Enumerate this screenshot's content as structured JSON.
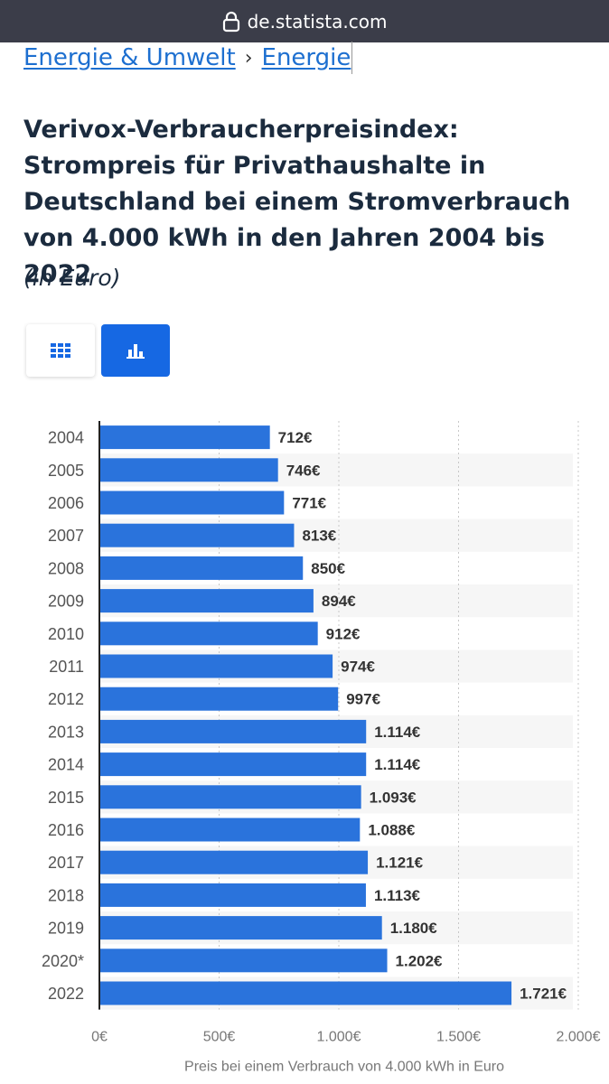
{
  "browser": {
    "url": "de.statista.com"
  },
  "breadcrumb": {
    "items": [
      "Energie & Umwelt",
      "Energie"
    ],
    "separator": "›"
  },
  "heading": {
    "title": "Verivox-Verbraucherpreisindex: Strompreis für Privathaushalte in Deutschland bei einem Stromverbrauch von 4.000 kWh in den Jahren 2004 bis 2022",
    "unit": "(in Euro)"
  },
  "view_toggle": {
    "table_icon": "table-grid-icon",
    "chart_icon": "bar-chart-icon",
    "active": "chart"
  },
  "colors": {
    "bar": "#2a73dc",
    "accent": "#1668e3",
    "link": "#1d6fd0",
    "topbar": "#3b3d49"
  },
  "chart_data": {
    "type": "bar",
    "orientation": "horizontal",
    "categories": [
      "2004",
      "2005",
      "2006",
      "2007",
      "2008",
      "2009",
      "2010",
      "2011",
      "2012",
      "2013",
      "2014",
      "2015",
      "2016",
      "2017",
      "2018",
      "2019",
      "2020*",
      "2022"
    ],
    "values": [
      712,
      746,
      771,
      813,
      850,
      894,
      912,
      974,
      997,
      1114,
      1114,
      1093,
      1088,
      1121,
      1113,
      1180,
      1202,
      1721
    ],
    "value_labels": [
      "712€",
      "746€",
      "771€",
      "813€",
      "850€",
      "894€",
      "912€",
      "974€",
      "997€",
      "1.114€",
      "1.114€",
      "1.093€",
      "1.088€",
      "1.121€",
      "1.113€",
      "1.180€",
      "1.202€",
      "1.721€"
    ],
    "xticks": [
      0,
      500,
      1000,
      1500,
      2000
    ],
    "xtick_labels": [
      "0€",
      "500€",
      "1.000€",
      "1.500€",
      "2.000€"
    ],
    "xlim": [
      0,
      2000
    ],
    "xlabel": "Preis bei einem Verbrauch von 4.000 kWh in Euro",
    "ylabel": "",
    "grid": "vertical-dashed"
  }
}
